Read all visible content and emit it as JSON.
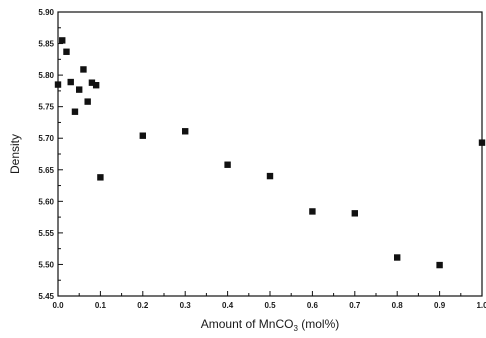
{
  "chart_data": {
    "type": "scatter",
    "title": "",
    "xlabel": "Amount of MnCO",
    "xlabel_subscript": "3",
    "xlabel_suffix": " (mol%)",
    "ylabel": "Density",
    "xlim": [
      0.0,
      1.0
    ],
    "ylim": [
      5.45,
      5.9
    ],
    "x_ticks": [
      "0.0",
      "0.1",
      "0.2",
      "0.3",
      "0.4",
      "0.5",
      "0.6",
      "0.7",
      "0.8",
      "0.9",
      "1.0"
    ],
    "y_ticks": [
      "5.45",
      "5.50",
      "5.55",
      "5.60",
      "5.65",
      "5.70",
      "5.75",
      "5.80",
      "5.85",
      "5.90"
    ],
    "grid": false,
    "legend": "none",
    "marker_color": "#111111",
    "points": [
      {
        "x": 0.0,
        "y": 5.785
      },
      {
        "x": 0.01,
        "y": 5.855
      },
      {
        "x": 0.02,
        "y": 5.837
      },
      {
        "x": 0.03,
        "y": 5.789
      },
      {
        "x": 0.04,
        "y": 5.742
      },
      {
        "x": 0.05,
        "y": 5.777
      },
      {
        "x": 0.06,
        "y": 5.809
      },
      {
        "x": 0.07,
        "y": 5.758
      },
      {
        "x": 0.08,
        "y": 5.788
      },
      {
        "x": 0.09,
        "y": 5.784
      },
      {
        "x": 0.1,
        "y": 5.638
      },
      {
        "x": 0.2,
        "y": 5.704
      },
      {
        "x": 0.3,
        "y": 5.711
      },
      {
        "x": 0.4,
        "y": 5.658
      },
      {
        "x": 0.5,
        "y": 5.64
      },
      {
        "x": 0.6,
        "y": 5.584
      },
      {
        "x": 0.7,
        "y": 5.581
      },
      {
        "x": 0.8,
        "y": 5.511
      },
      {
        "x": 0.9,
        "y": 5.499
      },
      {
        "x": 1.0,
        "y": 5.693
      }
    ]
  }
}
